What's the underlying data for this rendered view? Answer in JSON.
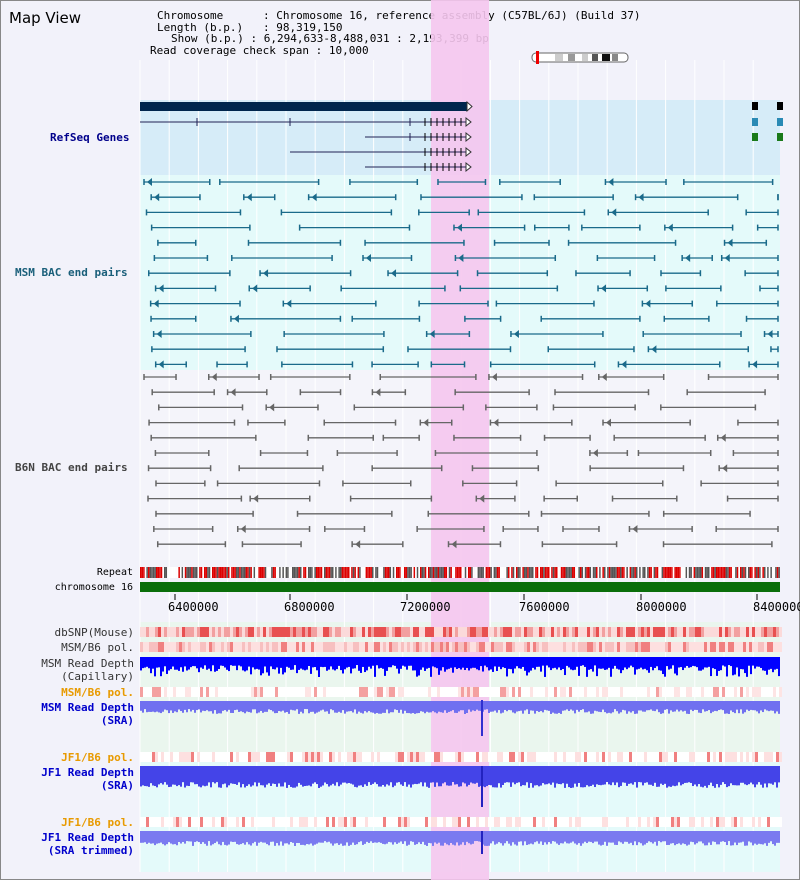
{
  "title": "Map View",
  "info": {
    "chromosome_key": "Chromosome",
    "chromosome_value": "Chromosome 16, reference assembly (C57BL/6J) (Build 37)",
    "length_key": "Length (b.p.)",
    "length_value": "98,319,150",
    "show_key": "Show (b.p.)",
    "show_value": "6,294,633-8,488,031 : 2,193,399 bp",
    "span_key": "Read coverage check span",
    "span_value": "10,000"
  },
  "tracks": {
    "refseq": "RefSeq Genes",
    "msm_bac": "MSM BAC end pairs",
    "b6n_bac": "B6N BAC end pairs",
    "repeat": "Repeat",
    "chromosome": "chromosome 16",
    "dbsnp": "dbSNP(Mouse)",
    "msm_b6_pol_1": "MSM/B6 pol.",
    "msm_depth_cap_1": "MSM Read Depth",
    "msm_depth_cap_2": "(Capillary)",
    "msm_b6_pol_2": "MSM/B6 pol.",
    "msm_depth_sra_1": "MSM Read Depth",
    "msm_depth_sra_2": "(SRA)",
    "jf1_b6_pol_1": "JF1/B6 pol.",
    "jf1_depth_sra_1": "JF1 Read Depth",
    "jf1_depth_sra_2": "(SRA)",
    "jf1_b6_pol_2": "JF1/B6 pol.",
    "jf1_depth_trim_1": "JF1 Read Depth",
    "jf1_depth_trim_2": "(SRA trimmed)"
  },
  "axis_ticks": [
    "6400000",
    "6800000",
    "7200000",
    "7600000",
    "8000000",
    "8400000"
  ],
  "colors": {
    "refseq_label": "#00008b",
    "msm_label": "#1a5f7a",
    "b6n_label": "#444444",
    "highlight": "#f5c6ee",
    "chromosome_bar": "#0a6e0a",
    "pol_orange": "#e89a00",
    "depth_blue": "#0000ff"
  }
}
